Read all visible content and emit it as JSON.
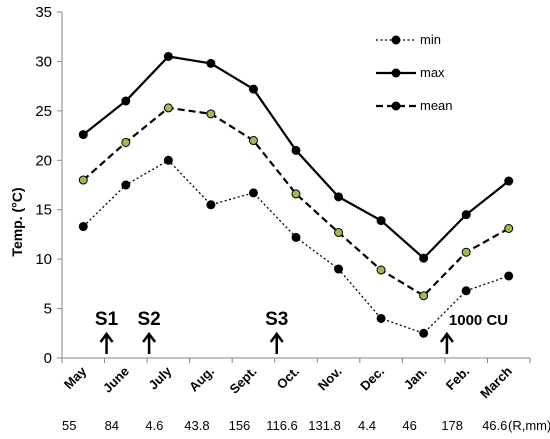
{
  "chart_data": {
    "type": "line",
    "ylabel": "Temp. (°C)",
    "ylim": [
      0,
      35
    ],
    "yticks": [
      0,
      5,
      10,
      15,
      20,
      25,
      30,
      35
    ],
    "categories": [
      "May",
      "June",
      "July",
      "Aug.",
      "Sept.",
      "Oct.",
      "Nov.",
      "Dec.",
      "Jan.",
      "Feb.",
      "March"
    ],
    "rainfall": [
      "55",
      "84",
      "4.6",
      "43.8",
      "156",
      "116.6",
      "131.8",
      "4.4",
      "46",
      "178",
      "46.6"
    ],
    "rainfall_label": "(R,mm)",
    "series": [
      {
        "name": "min",
        "style": "dotted",
        "color": "#000000",
        "marker_fill": "#000000",
        "values": [
          13.3,
          17.5,
          20.0,
          15.5,
          16.7,
          12.2,
          9.0,
          4.0,
          2.5,
          6.8,
          8.3
        ]
      },
      {
        "name": "max",
        "style": "solid",
        "color": "#000000",
        "marker_fill": "#000000",
        "values": [
          22.6,
          26.0,
          30.5,
          29.8,
          27.2,
          21.0,
          16.3,
          13.9,
          10.1,
          14.5,
          17.9
        ]
      },
      {
        "name": "mean",
        "style": "dashed",
        "color": "#000000",
        "marker_fill": "#9bbb59",
        "values": [
          18.0,
          21.8,
          25.3,
          24.7,
          22.0,
          16.6,
          12.7,
          8.9,
          6.3,
          10.7,
          13.1
        ]
      }
    ],
    "events": [
      {
        "label": "S1",
        "category": "June"
      },
      {
        "label": "S2",
        "category": "July"
      },
      {
        "label": "S3",
        "category": "Oct."
      },
      {
        "label": "1000 CU",
        "category": "Feb."
      }
    ],
    "legend_position": "top-right",
    "grid": false
  }
}
